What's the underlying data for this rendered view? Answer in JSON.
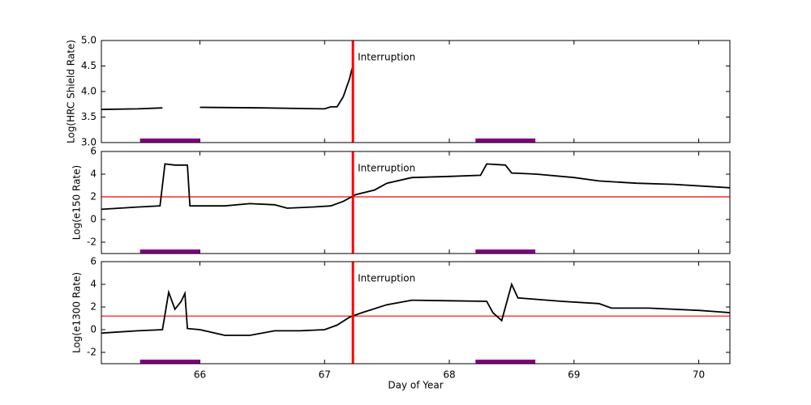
{
  "chart_data": [
    {
      "type": "line",
      "y_label": "Log(HRC Shield Rate)",
      "color": "#000000",
      "x": [
        65.21,
        65.5,
        65.7,
        65.72,
        66.0,
        66.5,
        67.0,
        67.05,
        67.1,
        67.15,
        67.2,
        67.22
      ],
      "values": [
        3.65,
        3.66,
        3.68,
        null,
        3.69,
        3.68,
        3.66,
        3.7,
        3.7,
        3.9,
        4.25,
        4.45
      ],
      "xlim": [
        65.21,
        70.25
      ],
      "ylim": [
        3.0,
        5.0
      ],
      "yticks": [
        {
          "value": 3.0,
          "label": "3.0"
        },
        {
          "value": 3.5,
          "label": "3.5"
        },
        {
          "value": 4.0,
          "label": "4.0"
        },
        {
          "value": 4.5,
          "label": "4.5"
        },
        {
          "value": 5.0,
          "label": "5.0"
        }
      ],
      "vline": 67.227,
      "vline_color": "#ff0000",
      "annotation": "Interruption",
      "bars": [
        [
          65.52,
          66.0
        ],
        [
          68.21,
          68.69
        ]
      ],
      "bar_color": "#800080"
    },
    {
      "type": "line",
      "y_label": "Log(e150  Rate)",
      "color": "#000000",
      "x": [
        65.21,
        65.5,
        65.68,
        65.72,
        65.8,
        65.9,
        65.92,
        66.2,
        66.4,
        66.6,
        66.7,
        66.9,
        67.05,
        67.15,
        67.25,
        67.4,
        67.5,
        67.7,
        68.0,
        68.25,
        68.3,
        68.45,
        68.5,
        68.7,
        69.0,
        69.2,
        69.5,
        69.8,
        70.25
      ],
      "values": [
        0.9,
        1.1,
        1.2,
        4.9,
        4.8,
        4.8,
        1.2,
        1.2,
        1.4,
        1.3,
        1.0,
        1.1,
        1.2,
        1.6,
        2.2,
        2.6,
        3.2,
        3.7,
        3.8,
        3.9,
        4.9,
        4.8,
        4.1,
        4.0,
        3.7,
        3.4,
        3.2,
        3.1,
        2.8
      ],
      "xlim": [
        65.21,
        70.25
      ],
      "ylim": [
        -3,
        6
      ],
      "yticks": [
        -2,
        0,
        2,
        4,
        6
      ],
      "vline": 67.227,
      "vline_color": "#ff0000",
      "hline": 2,
      "hline_color": "#ff0000",
      "annotation": "Interruption",
      "bars": [
        [
          65.52,
          66.0
        ],
        [
          68.21,
          68.69
        ]
      ],
      "bar_color": "#800080"
    },
    {
      "type": "line",
      "y_label": "Log(e1300 Rate)",
      "x_label": "Day of Year",
      "color": "#000000",
      "x": [
        65.21,
        65.5,
        65.7,
        65.75,
        65.8,
        65.85,
        65.88,
        65.9,
        66.0,
        66.2,
        66.4,
        66.6,
        66.8,
        67.0,
        67.1,
        67.2,
        67.3,
        67.5,
        67.7,
        68.0,
        68.3,
        68.35,
        68.42,
        68.5,
        68.55,
        68.9,
        69.2,
        69.3,
        69.6,
        70.0,
        70.25
      ],
      "values": [
        -0.3,
        -0.1,
        0.0,
        3.3,
        1.8,
        2.5,
        3.2,
        0.1,
        0.0,
        -0.5,
        -0.5,
        -0.1,
        -0.1,
        0.0,
        0.4,
        1.1,
        1.5,
        2.2,
        2.6,
        2.55,
        2.5,
        1.5,
        0.8,
        4.0,
        2.8,
        2.5,
        2.3,
        1.9,
        1.9,
        1.7,
        1.5
      ],
      "xlim": [
        65.21,
        70.25
      ],
      "ylim": [
        -3,
        6
      ],
      "yticks": [
        -2,
        0,
        2,
        4,
        6
      ],
      "xticks": [
        66,
        67,
        68,
        69,
        70
      ],
      "vline": 67.227,
      "vline_color": "#ff0000",
      "hline": 1.2,
      "hline_color": "#ff0000",
      "annotation": "Interruption",
      "bars": [
        [
          65.52,
          66.0
        ],
        [
          68.21,
          68.69
        ]
      ],
      "bar_color": "#800080"
    }
  ]
}
